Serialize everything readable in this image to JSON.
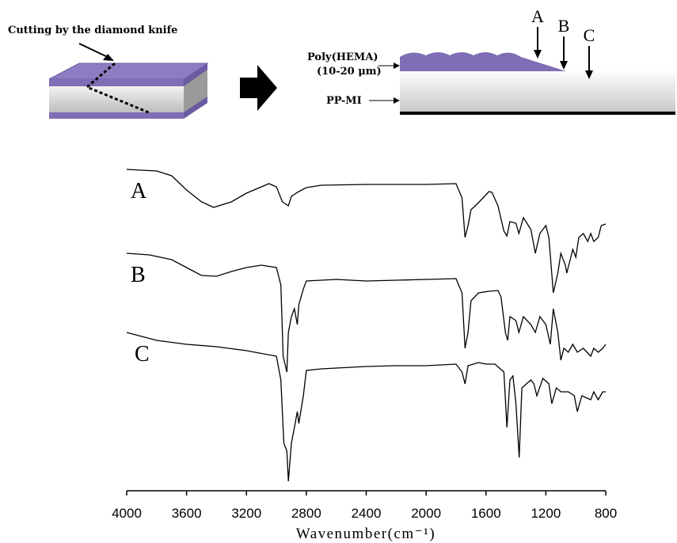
{
  "diagram": {
    "cut_label": "Cutting by the diamond knife",
    "layer_top": "Poly(HEMA)",
    "layer_thickness": "(10-20 μm)",
    "layer_bottom": "PP-MI",
    "points": [
      "A",
      "B",
      "C"
    ]
  },
  "chart_data": {
    "type": "line",
    "x_label": "Wavenumber(cm⁻¹)",
    "xlim": [
      4000,
      800
    ],
    "xticks": [
      4000,
      3600,
      3200,
      2800,
      2400,
      2000,
      1600,
      1200,
      800
    ],
    "ylim": [
      0,
      420
    ],
    "color": "#000000",
    "series": [
      {
        "name": "A",
        "x": [
          4000,
          3800,
          3700,
          3600,
          3500,
          3420,
          3300,
          3200,
          3100,
          3050,
          3000,
          2960,
          2920,
          2900,
          2850,
          2800,
          2700,
          2400,
          2000,
          1800,
          1760,
          1740,
          1720,
          1700,
          1660,
          1620,
          1580,
          1560,
          1520,
          1480,
          1460,
          1440,
          1400,
          1380,
          1350,
          1300,
          1270,
          1240,
          1200,
          1180,
          1150,
          1120,
          1100,
          1070,
          1060,
          1040,
          1020,
          1000,
          980,
          950,
          920,
          900,
          880,
          850,
          830,
          800
        ],
        "values": [
          406,
          404,
          398,
          380,
          365,
          358,
          365,
          376,
          384,
          388,
          384,
          365,
          360,
          372,
          378,
          383,
          386,
          387,
          387,
          388,
          370,
          320,
          335,
          355,
          362,
          370,
          378,
          377,
          360,
          328,
          322,
          340,
          338,
          325,
          345,
          330,
          300,
          325,
          335,
          320,
          250,
          275,
          300,
          285,
          275,
          290,
          305,
          295,
          320,
          325,
          315,
          325,
          315,
          320,
          335,
          337
        ]
      },
      {
        "name": "B",
        "x": [
          4000,
          3850,
          3700,
          3600,
          3500,
          3400,
          3300,
          3200,
          3100,
          3000,
          2970,
          2955,
          2930,
          2920,
          2900,
          2880,
          2860,
          2850,
          2820,
          2800,
          2600,
          2400,
          2200,
          2000,
          1800,
          1760,
          1740,
          1720,
          1700,
          1650,
          1580,
          1520,
          1500,
          1470,
          1455,
          1440,
          1400,
          1380,
          1350,
          1300,
          1270,
          1240,
          1200,
          1170,
          1150,
          1120,
          1100,
          1080,
          1050,
          1020,
          990,
          950,
          900,
          880,
          850,
          820,
          800
        ],
        "values": [
          300,
          298,
          292,
          282,
          272,
          271,
          277,
          282,
          285,
          282,
          260,
          170,
          150,
          200,
          220,
          230,
          210,
          235,
          255,
          265,
          267,
          265,
          266,
          267,
          268,
          250,
          180,
          200,
          240,
          250,
          252,
          253,
          245,
          200,
          190,
          220,
          215,
          200,
          220,
          210,
          200,
          220,
          210,
          185,
          230,
          200,
          165,
          180,
          175,
          185,
          175,
          180,
          170,
          180,
          175,
          180,
          185
        ]
      },
      {
        "name": "C",
        "x": [
          4000,
          3800,
          3600,
          3400,
          3200,
          3000,
          2970,
          2950,
          2930,
          2920,
          2900,
          2880,
          2860,
          2850,
          2820,
          2800,
          2700,
          2400,
          2200,
          2000,
          1800,
          1760,
          1740,
          1720,
          1650,
          1600,
          1540,
          1480,
          1460,
          1440,
          1420,
          1400,
          1378,
          1360,
          1300,
          1280,
          1260,
          1220,
          1180,
          1160,
          1130,
          1100,
          1050,
          1010,
          990,
          960,
          900,
          880,
          850,
          820,
          800
        ],
        "values": [
          200,
          190,
          185,
          182,
          177,
          170,
          140,
          60,
          50,
          12,
          60,
          80,
          100,
          85,
          120,
          152,
          154,
          157,
          158,
          158,
          160,
          150,
          135,
          158,
          162,
          160,
          160,
          150,
          80,
          140,
          145,
          110,
          42,
          130,
          140,
          135,
          120,
          142,
          135,
          110,
          130,
          125,
          125,
          120,
          100,
          120,
          115,
          125,
          115,
          125,
          125
        ]
      }
    ]
  }
}
